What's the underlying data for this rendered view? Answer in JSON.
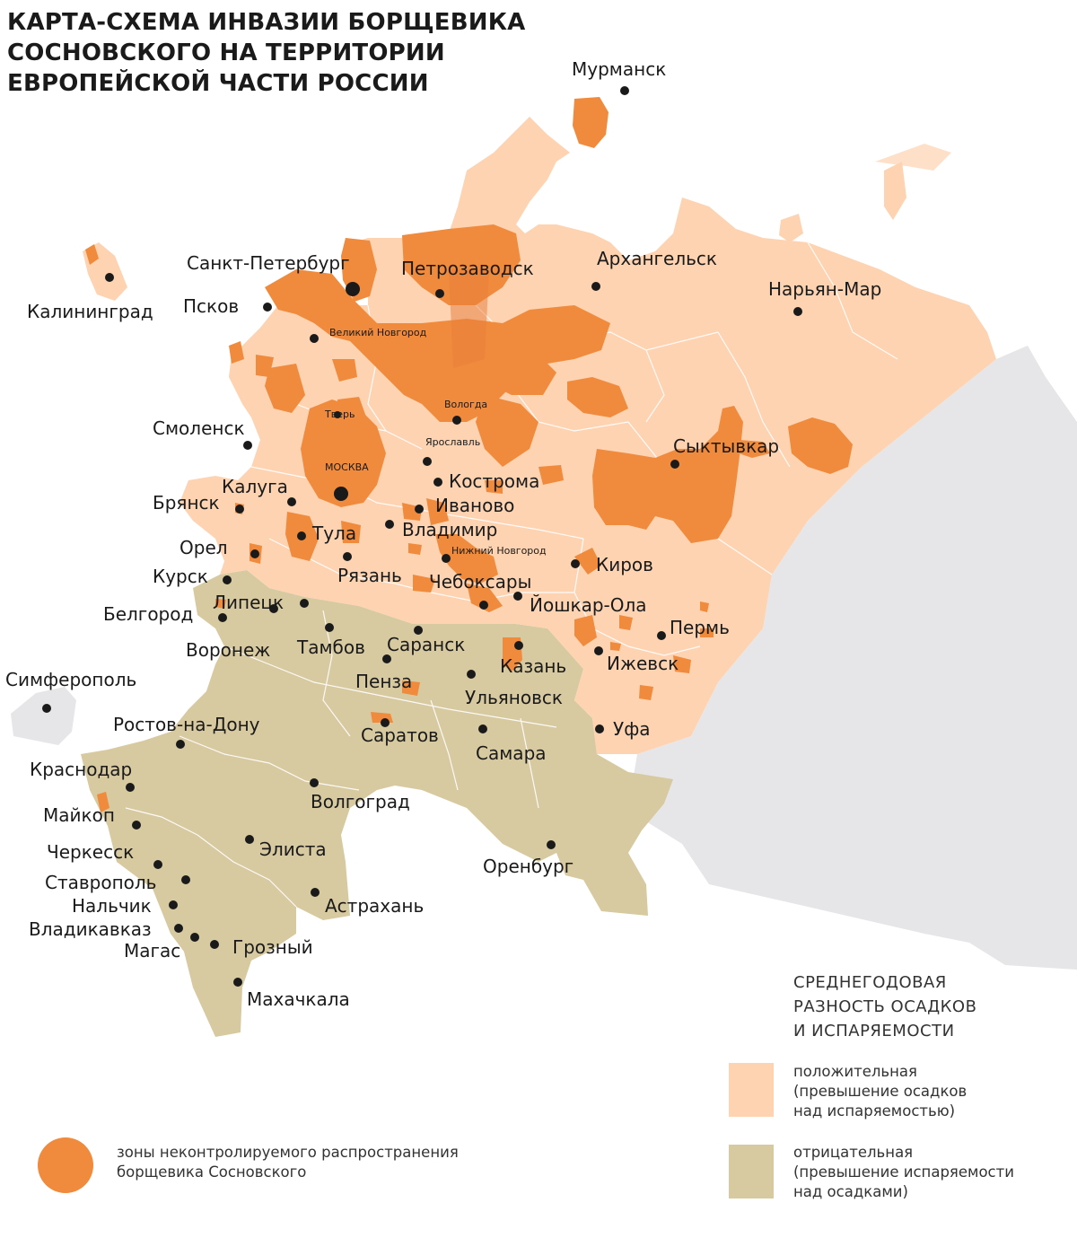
{
  "title": {
    "lines": [
      "КАРТА-СХЕМА ИНВАЗИИ БОРЩЕВИКА",
      "СОСНОВСКОГО НА ТЕРРИТОРИИ",
      "ЕВРОПЕЙСКОЙ ЧАСТИ РОССИИ"
    ]
  },
  "colors": {
    "positive_zone": "#fdd3b2",
    "negative_zone": "#d7c9a0",
    "invasion_zone": "#f08a3c",
    "invasion_overlay": "#e87e3a",
    "outside_region": "#e6e6e8",
    "region_border": "#ffffff",
    "city_dot": "#1a1a1a"
  },
  "legend": {
    "title_lines": [
      "СРЕДНЕГОДОВАЯ",
      "РАЗНОСТЬ ОСАДКОВ",
      "И ИСПАРЯЕМОСТИ"
    ],
    "positive": {
      "lines": [
        "положительная",
        "(превышение осадков",
        "над испаряемостью)"
      ]
    },
    "negative": {
      "lines": [
        "отрицательная",
        "(превышение испаряемости",
        "над осадками)"
      ]
    },
    "invasion": {
      "lines": [
        "зоны неконтролируемого распространения",
        "борщевика Сосновского"
      ]
    }
  },
  "cities": [
    {
      "name": "Мурманск"
    },
    {
      "name": "Архангельск"
    },
    {
      "name": "Нарьян-Мар"
    },
    {
      "name": "Санкт-Петербург"
    },
    {
      "name": "Петрозаводск"
    },
    {
      "name": "Калининград"
    },
    {
      "name": "Псков"
    },
    {
      "name": "Великий Новгород"
    },
    {
      "name": "Вологда"
    },
    {
      "name": "Тверь"
    },
    {
      "name": "Ярославль"
    },
    {
      "name": "Смоленск"
    },
    {
      "name": "МОСКВА"
    },
    {
      "name": "Сыктывкар"
    },
    {
      "name": "Калуга"
    },
    {
      "name": "Кострома"
    },
    {
      "name": "Брянск"
    },
    {
      "name": "Иваново"
    },
    {
      "name": "Тула"
    },
    {
      "name": "Владимир"
    },
    {
      "name": "Орел"
    },
    {
      "name": "Нижний Новгород"
    },
    {
      "name": "Рязань"
    },
    {
      "name": "Киров"
    },
    {
      "name": "Курск"
    },
    {
      "name": "Чебоксары"
    },
    {
      "name": "Липецк"
    },
    {
      "name": "Йошкар-Ола"
    },
    {
      "name": "Белгород"
    },
    {
      "name": "Пермь"
    },
    {
      "name": "Воронеж"
    },
    {
      "name": "Тамбов"
    },
    {
      "name": "Саранск"
    },
    {
      "name": "Казань"
    },
    {
      "name": "Ижевск"
    },
    {
      "name": "Симферополь"
    },
    {
      "name": "Пенза"
    },
    {
      "name": "Ульяновск"
    },
    {
      "name": "Ростов-на-Дону"
    },
    {
      "name": "Саратов"
    },
    {
      "name": "Уфа"
    },
    {
      "name": "Самара"
    },
    {
      "name": "Краснодар"
    },
    {
      "name": "Волгоград"
    },
    {
      "name": "Майкоп"
    },
    {
      "name": "Черкесск"
    },
    {
      "name": "Элиста"
    },
    {
      "name": "Оренбург"
    },
    {
      "name": "Ставрополь"
    },
    {
      "name": "Нальчик"
    },
    {
      "name": "Астрахань"
    },
    {
      "name": "Владикавказ"
    },
    {
      "name": "Магас"
    },
    {
      "name": "Грозный"
    },
    {
      "name": "Махачкала"
    }
  ]
}
